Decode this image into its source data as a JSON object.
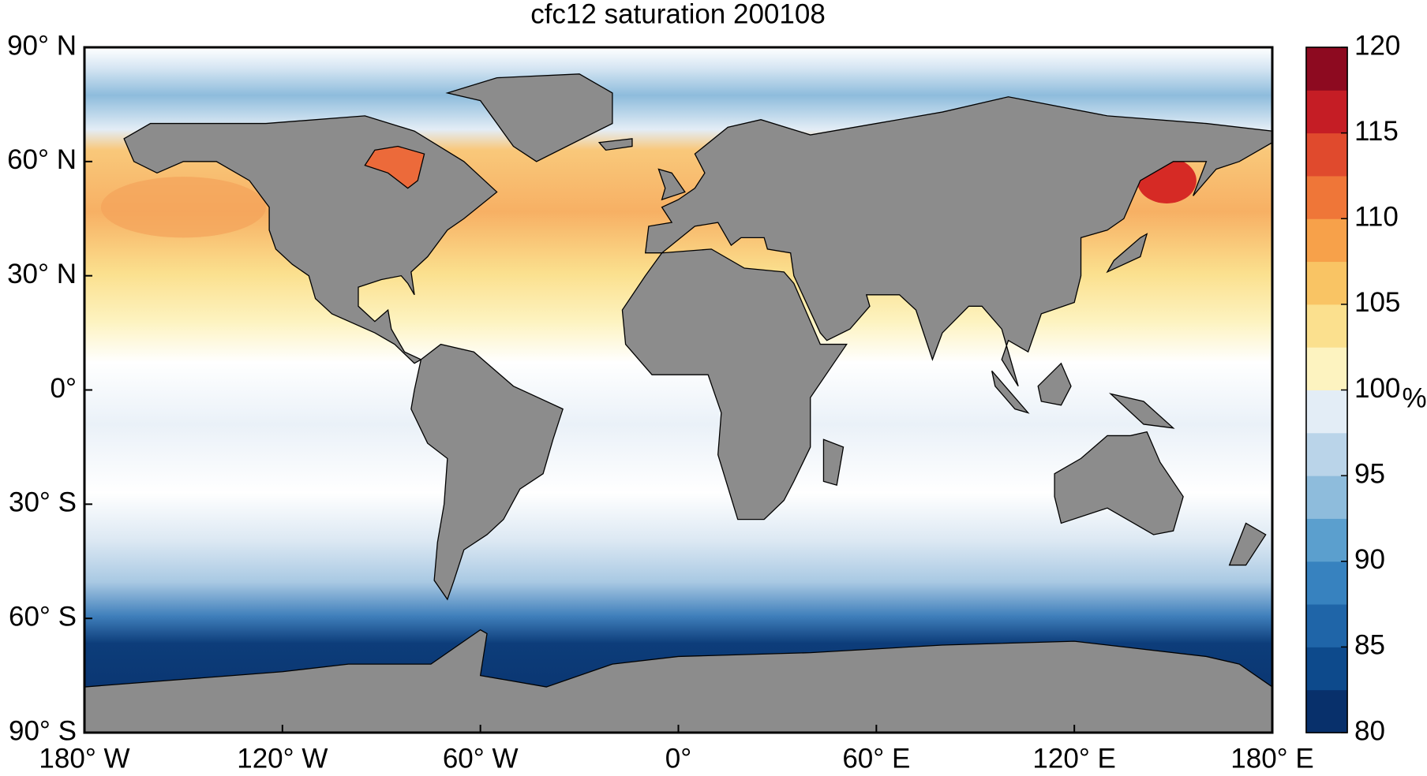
{
  "chart_data": {
    "type": "map",
    "title": "cfc12 saturation 200108",
    "xlim": [
      -180,
      180
    ],
    "ylim": [
      -90,
      90
    ],
    "xticks": [
      {
        "value": -180,
        "label": "180° W"
      },
      {
        "value": -120,
        "label": "120° W"
      },
      {
        "value": -60,
        "label": "60° W"
      },
      {
        "value": 0,
        "label": "0°"
      },
      {
        "value": 60,
        "label": "60° E"
      },
      {
        "value": 120,
        "label": "120° E"
      },
      {
        "value": 180,
        "label": "180° E"
      }
    ],
    "yticks": [
      {
        "value": 90,
        "label": "90° N"
      },
      {
        "value": 60,
        "label": "60° N"
      },
      {
        "value": 30,
        "label": "30° N"
      },
      {
        "value": 0,
        "label": "0°"
      },
      {
        "value": -30,
        "label": "30° S"
      },
      {
        "value": -60,
        "label": "60° S"
      },
      {
        "value": -90,
        "label": "90° S"
      }
    ],
    "colorbar": {
      "label": "%",
      "lim": [
        80,
        120
      ],
      "ticks": [
        80,
        85,
        90,
        95,
        100,
        105,
        110,
        115,
        120
      ],
      "colors": [
        "#08306b",
        "#0d4a8c",
        "#1f65a8",
        "#3782bf",
        "#5b9fce",
        "#8ebcdc",
        "#bad4e9",
        "#e3edf6",
        "#fdf3c0",
        "#fbe08e",
        "#f9c464",
        "#f7a14a",
        "#ef7638",
        "#e04a2d",
        "#c51d25",
        "#8d0a20"
      ]
    }
  }
}
